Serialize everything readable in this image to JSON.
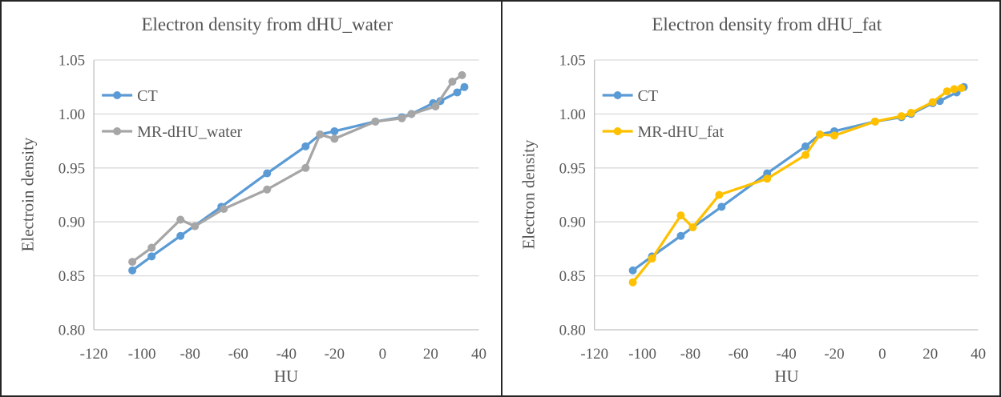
{
  "figure": {
    "background": "#ffffff",
    "border_color": "#262626"
  },
  "colors": {
    "ct_blue": "#5B9BD5",
    "mr_gray": "#A6A6A6",
    "mr_yellow": "#FFC000",
    "gridline": "#D9D9D9",
    "axis_line": "#C0C0C0",
    "text": "#595959"
  },
  "chart_data": [
    {
      "type": "line",
      "title": "Electron density from dHU_water",
      "xlabel": "HU",
      "ylabel": "Electroin density",
      "xlim": [
        -120,
        40
      ],
      "ylim": [
        0.8,
        1.05
      ],
      "grid": "horizontal-only",
      "legend_position": "inside-top-left",
      "x_tick_labels": [
        "-120",
        "-100",
        "-80",
        "-60",
        "-40",
        "-20",
        "0",
        "20",
        "40"
      ],
      "x_tick_values": [
        -120,
        -100,
        -80,
        -60,
        -40,
        -20,
        0,
        20,
        40
      ],
      "y_tick_labels": [
        "1.05",
        "1.00",
        "0.95",
        "0.90",
        "0.85",
        "0.80"
      ],
      "y_tick_values": [
        1.05,
        1.0,
        0.95,
        0.9,
        0.85,
        0.8
      ],
      "series": [
        {
          "name": "CT",
          "color": "#5B9BD5",
          "x": [
            -104,
            -96,
            -84,
            -67,
            -48,
            -32,
            -26,
            -20,
            -3,
            8,
            12,
            21,
            24,
            31,
            34
          ],
          "y": [
            0.855,
            0.868,
            0.887,
            0.914,
            0.945,
            0.97,
            0.981,
            0.984,
            0.993,
            0.997,
            1.0,
            1.01,
            1.012,
            1.02,
            1.025
          ]
        },
        {
          "name": "MR-dHU_water",
          "color": "#A6A6A6",
          "x": [
            -104,
            -96,
            -84,
            -78,
            -66,
            -48,
            -32,
            -26,
            -20,
            -3,
            8,
            12,
            22,
            29,
            33
          ],
          "y": [
            0.863,
            0.876,
            0.902,
            0.896,
            0.912,
            0.93,
            0.95,
            0.981,
            0.977,
            0.993,
            0.996,
            1.0,
            1.007,
            1.03,
            1.036
          ]
        }
      ]
    },
    {
      "type": "line",
      "title": "Electron density from dHU_fat",
      "xlabel": "HU",
      "ylabel": "Electron density",
      "xlim": [
        -120,
        40
      ],
      "ylim": [
        0.8,
        1.05
      ],
      "grid": "horizontal-only",
      "legend_position": "inside-top-left",
      "x_tick_labels": [
        "-120",
        "-100",
        "-80",
        "-60",
        "-40",
        "-20",
        "0",
        "20",
        "40"
      ],
      "x_tick_values": [
        -120,
        -100,
        -80,
        -60,
        -40,
        -20,
        0,
        20,
        40
      ],
      "y_tick_labels": [
        "1.05",
        "1.00",
        "0.95",
        "0.90",
        "0.85",
        "0.80"
      ],
      "y_tick_values": [
        1.05,
        1.0,
        0.95,
        0.9,
        0.85,
        0.8
      ],
      "series": [
        {
          "name": "CT",
          "color": "#5B9BD5",
          "x": [
            -104,
            -96,
            -84,
            -67,
            -48,
            -32,
            -26,
            -20,
            -3,
            8,
            12,
            21,
            24,
            31,
            34
          ],
          "y": [
            0.855,
            0.868,
            0.887,
            0.914,
            0.945,
            0.97,
            0.981,
            0.984,
            0.993,
            0.997,
            1.0,
            1.01,
            1.012,
            1.02,
            1.025
          ]
        },
        {
          "name": "MR-dHU_fat",
          "color": "#FFC000",
          "x": [
            -104,
            -96,
            -84,
            -79,
            -68,
            -48,
            -32,
            -26,
            -20,
            -3,
            8,
            12,
            21,
            27,
            30,
            33
          ],
          "y": [
            0.844,
            0.866,
            0.906,
            0.895,
            0.925,
            0.94,
            0.962,
            0.981,
            0.98,
            0.993,
            0.998,
            1.001,
            1.011,
            1.021,
            1.023,
            1.024
          ]
        }
      ]
    }
  ]
}
